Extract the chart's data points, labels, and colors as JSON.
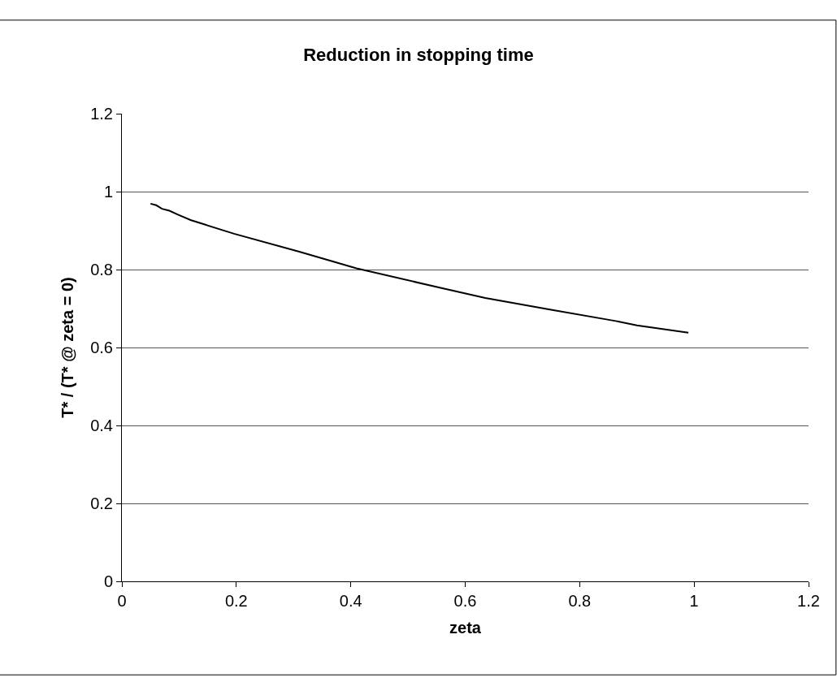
{
  "chart_data": {
    "type": "line",
    "title": "Reduction in stopping time",
    "xlabel": "zeta",
    "ylabel": "T* / (T* @ zeta = 0)",
    "series": [
      {
        "color": "#000000",
        "x": [
          0.05,
          0.06,
          0.07,
          0.083,
          0.098,
          0.12,
          0.146,
          0.196,
          0.31,
          0.41,
          0.56,
          0.635,
          0.75,
          0.863,
          0.9,
          0.99
        ],
        "values": [
          0.969,
          0.965,
          0.956,
          0.951,
          0.941,
          0.927,
          0.915,
          0.892,
          0.846,
          0.803,
          0.752,
          0.727,
          0.697,
          0.668,
          0.657,
          0.638
        ]
      }
    ],
    "xlim": [
      0,
      1.2
    ],
    "xticks": [
      0,
      0.2,
      0.4,
      0.6,
      0.8,
      1,
      1.2
    ],
    "ylim": [
      0,
      1.2
    ],
    "yticks": [
      0,
      0.2,
      0.4,
      0.6,
      0.8,
      1,
      1.2
    ],
    "grid": "y",
    "marker": "none",
    "line_style": "solid"
  }
}
